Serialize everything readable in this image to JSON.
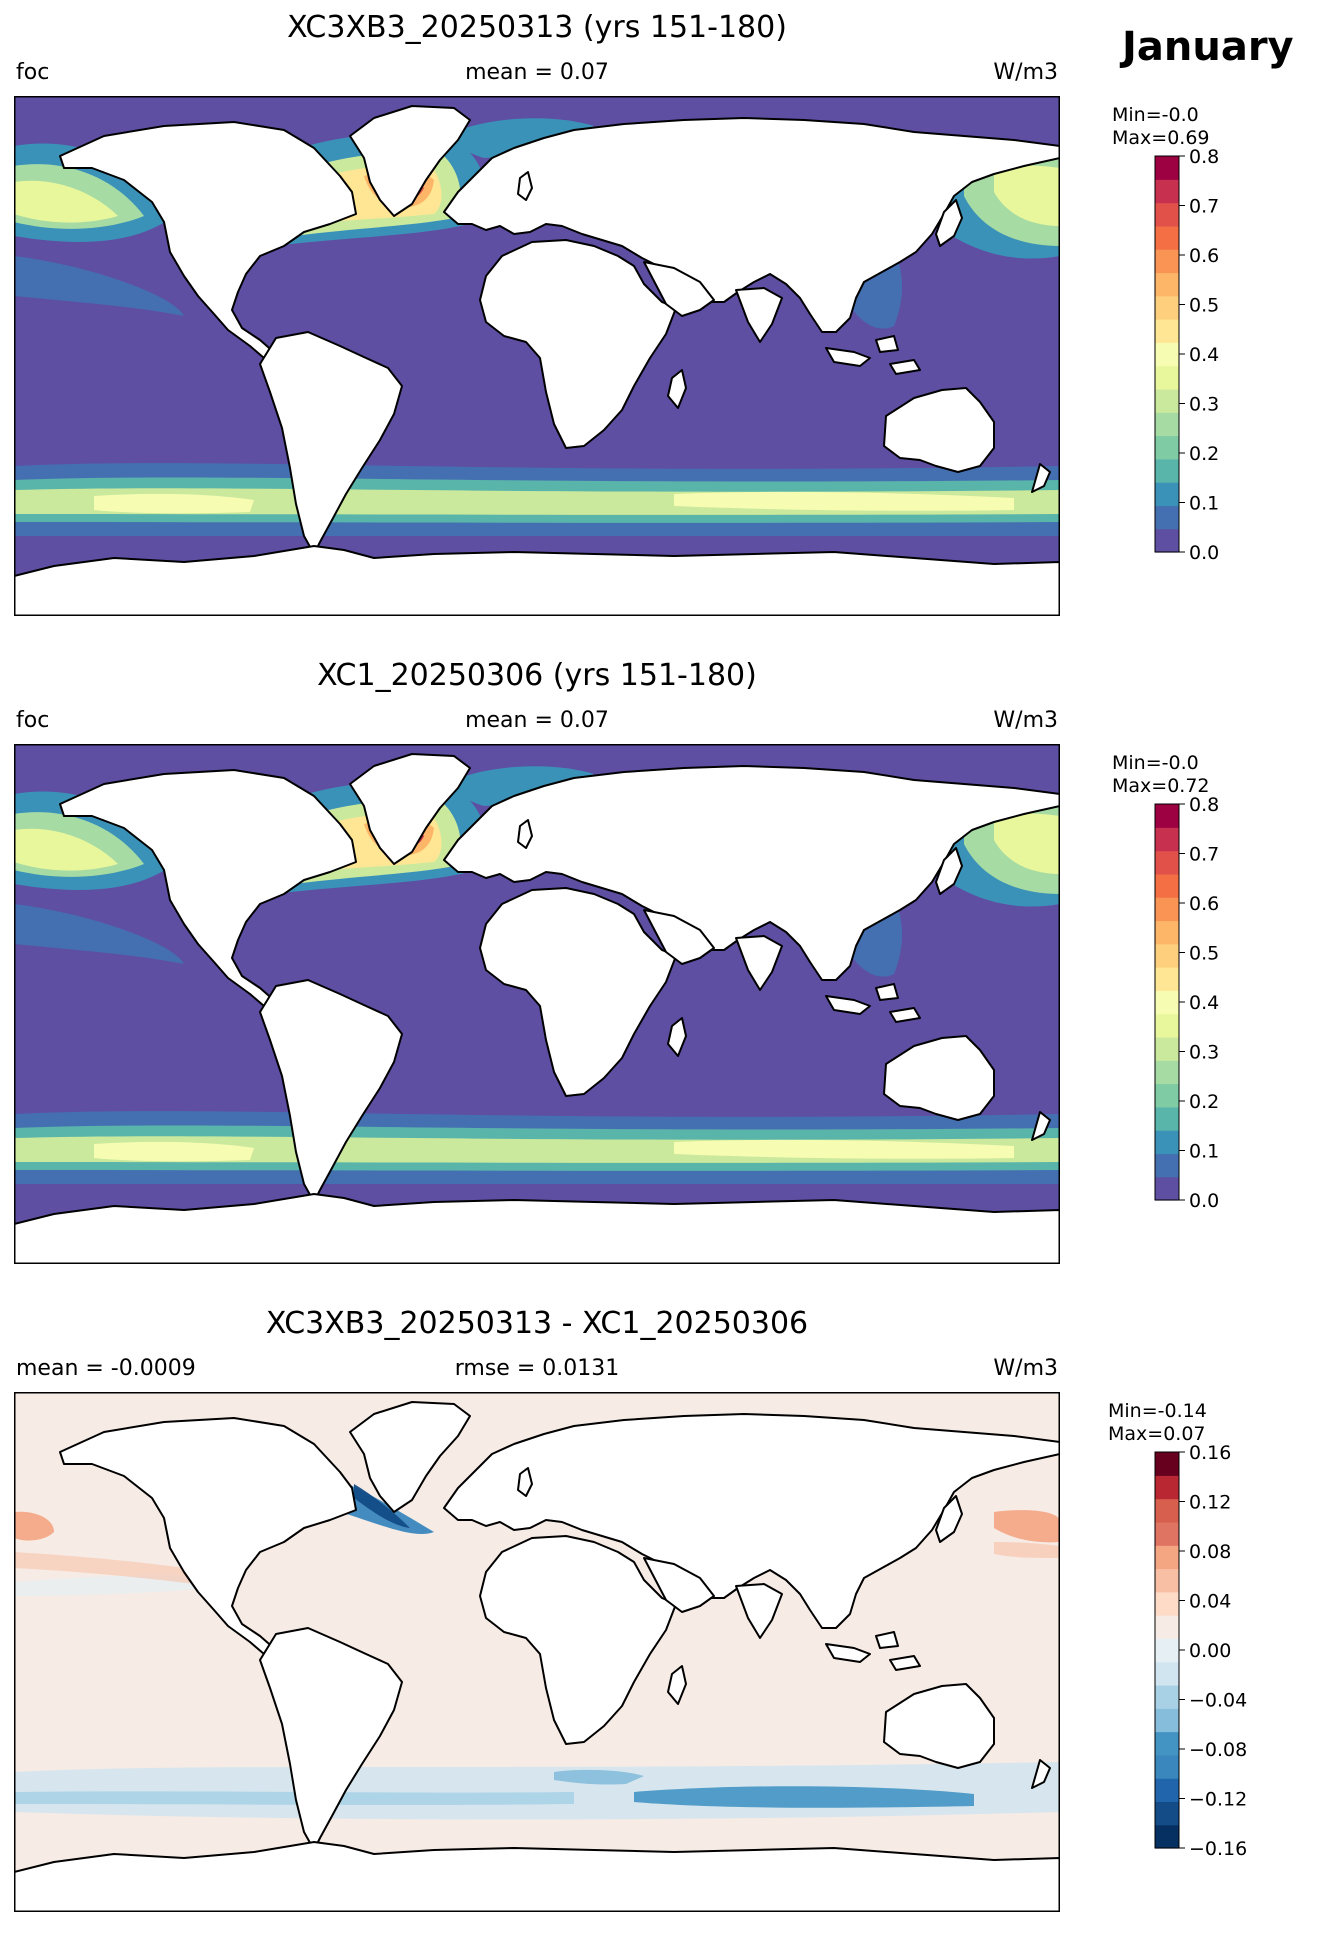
{
  "month_label": "January",
  "panels": [
    {
      "title": "XC3XB3_20250313 (yrs 151-180)",
      "left_label": "foc",
      "center_label": "mean = 0.07",
      "right_label": "W/m3",
      "colorbar": {
        "min_text": "Min=-0.0",
        "max_text": "Max=0.69",
        "ticks": [
          "0.0",
          "0.1",
          "0.2",
          "0.3",
          "0.4",
          "0.5",
          "0.6",
          "0.7",
          "0.8"
        ],
        "colors": [
          "#5e4fa2",
          "#4470b1",
          "#3b92b8",
          "#59b4aa",
          "#7ecba4",
          "#a6dba4",
          "#cae99d",
          "#e8f69c",
          "#f7fcb3",
          "#fee695",
          "#fed07e",
          "#fdb567",
          "#f99455",
          "#f47044",
          "#e1514a",
          "#c7304f",
          "#9e0142"
        ]
      }
    },
    {
      "title": "XC1_20250306 (yrs 151-180)",
      "left_label": "foc",
      "center_label": "mean = 0.07",
      "right_label": "W/m3",
      "colorbar": {
        "min_text": "Min=-0.0",
        "max_text": "Max=0.72",
        "ticks": [
          "0.0",
          "0.1",
          "0.2",
          "0.3",
          "0.4",
          "0.5",
          "0.6",
          "0.7",
          "0.8"
        ],
        "colors": [
          "#5e4fa2",
          "#4470b1",
          "#3b92b8",
          "#59b4aa",
          "#7ecba4",
          "#a6dba4",
          "#cae99d",
          "#e8f69c",
          "#f7fcb3",
          "#fee695",
          "#fed07e",
          "#fdb567",
          "#f99455",
          "#f47044",
          "#e1514a",
          "#c7304f",
          "#9e0142"
        ]
      }
    },
    {
      "title": "XC3XB3_20250313 - XC1_20250306",
      "left_label": "mean = -0.0009",
      "center_label": "rmse = 0.0131",
      "right_label": "W/m3",
      "colorbar": {
        "min_text": "Min=-0.14",
        "max_text": "Max=0.07",
        "ticks": [
          "−0.16",
          "−0.12",
          "−0.08",
          "−0.04",
          "0.00",
          "0.04",
          "0.08",
          "0.12",
          "0.16"
        ],
        "colors": [
          "#053061",
          "#134c87",
          "#2166ac",
          "#3a87bd",
          "#4393c3",
          "#86bdda",
          "#a9d1e5",
          "#d1e5f0",
          "#e6eff4",
          "#f7ebe5",
          "#fddbc7",
          "#f8bfa4",
          "#f4a582",
          "#df7463",
          "#d6604d",
          "#b92732",
          "#67001f"
        ]
      }
    }
  ]
}
